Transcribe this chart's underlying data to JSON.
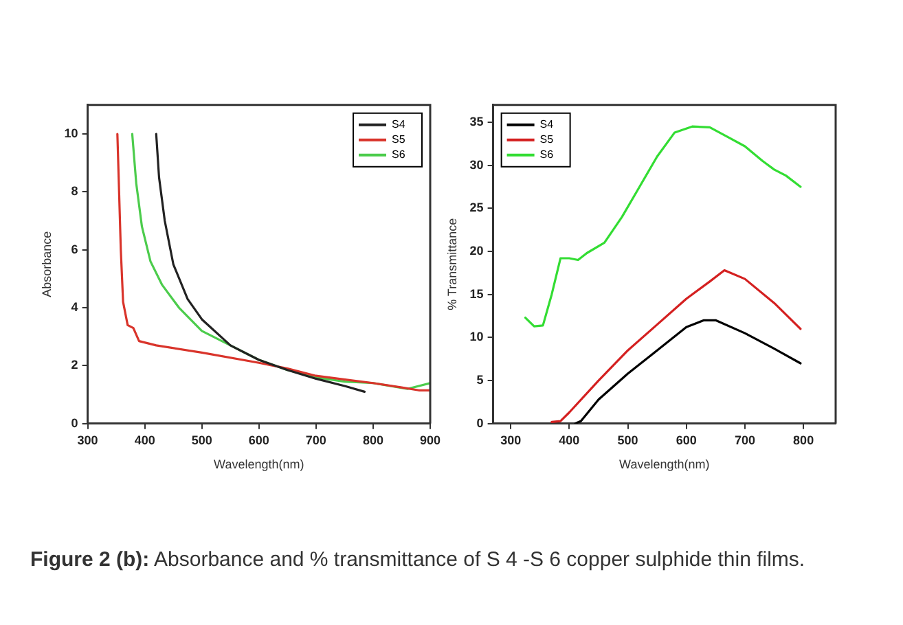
{
  "chart_data": [
    {
      "type": "line",
      "xlabel": "Wavelength(nm)",
      "ylabel": "Absorbance",
      "xlim": [
        300,
        900
      ],
      "xticks": [
        300,
        400,
        500,
        600,
        700,
        800,
        900
      ],
      "ylim": [
        0,
        11
      ],
      "yticks": [
        0,
        2,
        4,
        6,
        8,
        10
      ],
      "legend": "top right",
      "grid": false,
      "marker": "none",
      "series": [
        {
          "name": "S4",
          "color": "#222222",
          "x": [
            420,
            425,
            435,
            450,
            475,
            500,
            550,
            600,
            650,
            700,
            750,
            785
          ],
          "values": [
            10,
            8.5,
            7,
            5.5,
            4.3,
            3.6,
            2.7,
            2.2,
            1.85,
            1.55,
            1.3,
            1.1
          ]
        },
        {
          "name": "S5",
          "color": "#d9342b",
          "x": [
            352,
            355,
            358,
            362,
            370,
            380,
            390,
            420,
            500,
            600,
            650,
            700,
            800,
            850,
            880,
            900
          ],
          "values": [
            10,
            8,
            6,
            4.2,
            3.4,
            3.3,
            2.85,
            2.7,
            2.45,
            2.1,
            1.9,
            1.65,
            1.4,
            1.25,
            1.15,
            1.15
          ]
        },
        {
          "name": "S6",
          "color": "#4ccc4c",
          "x": [
            378,
            385,
            395,
            410,
            430,
            460,
            500,
            550,
            600,
            650,
            700,
            750,
            800,
            860,
            900
          ],
          "values": [
            10,
            8.3,
            6.8,
            5.6,
            4.8,
            4,
            3.2,
            2.7,
            2.2,
            1.85,
            1.6,
            1.45,
            1.4,
            1.2,
            1.4
          ]
        }
      ]
    },
    {
      "type": "line",
      "xlabel": "Wavelength(nm)",
      "ylabel": "% Transmittance",
      "xlim": [
        270,
        855
      ],
      "xticks": [
        300,
        400,
        500,
        600,
        700,
        800
      ],
      "ylim": [
        0,
        37
      ],
      "yticks": [
        0,
        5,
        10,
        15,
        20,
        25,
        30,
        35
      ],
      "legend": "top left",
      "grid": false,
      "marker": "none",
      "annotations": [
        "Figure 2 (b): Absorbance and % transmittance of S 4 -S 6 copper sulphide thin films."
      ],
      "series": [
        {
          "name": "S4",
          "color": "#000000",
          "x": [
            410,
            420,
            450,
            500,
            550,
            600,
            630,
            650,
            700,
            750,
            795
          ],
          "values": [
            0,
            0.3,
            2.8,
            5.8,
            8.5,
            11.2,
            12,
            12,
            10.5,
            8.7,
            7
          ]
        },
        {
          "name": "S5",
          "color": "#d42020",
          "x": [
            370,
            385,
            400,
            450,
            500,
            550,
            600,
            640,
            665,
            700,
            750,
            795
          ],
          "values": [
            0.2,
            0.3,
            1.3,
            5,
            8.5,
            11.5,
            14.5,
            16.5,
            17.8,
            16.8,
            14,
            11
          ]
        },
        {
          "name": "S6",
          "color": "#33dd33",
          "x": [
            325,
            340,
            355,
            370,
            385,
            400,
            415,
            430,
            460,
            490,
            520,
            550,
            580,
            610,
            640,
            670,
            700,
            730,
            750,
            770,
            795
          ],
          "values": [
            12.3,
            11.3,
            11.4,
            15,
            19.2,
            19.2,
            19,
            19.8,
            21,
            24,
            27.5,
            31,
            33.8,
            34.5,
            34.4,
            33.3,
            32.2,
            30.5,
            29.5,
            28.8,
            27.5
          ]
        }
      ]
    }
  ]
}
